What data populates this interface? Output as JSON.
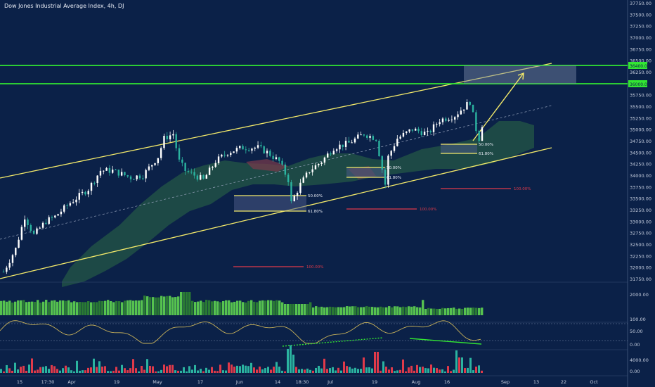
{
  "title": "Dow Jones Industrial Average Index, 4h, DJ",
  "colors": {
    "background": "#0b2148",
    "bull": "#ffffff",
    "bear": "#2bb3a0",
    "channel": "#f4ea6a",
    "resistance": "#32e632",
    "cloud_bull": "#2e6b45",
    "cloud_bear": "#7a3a4a",
    "volume_up": "#56c24f",
    "volume_down": "#2a7a34",
    "fib_line": "#f4ea6a",
    "fib_target": "#e03a4a",
    "oscillator": "#c9b25a",
    "momentum_up": "#2bb3a0",
    "momentum_down": "#e03a4a"
  },
  "chart_data": {
    "type": "candlestick",
    "title": "Dow Jones Industrial Average Index, 4h, DJ",
    "x_tick_labels": [
      "15",
      "17:30",
      "Apr",
      "19",
      "May",
      "17",
      "Jun",
      "14",
      "18:30",
      "Jul",
      "19",
      "Aug",
      "16",
      "Sep",
      "13",
      "22",
      "Oct"
    ],
    "y_tick_labels": [
      "37750.00",
      "37500.00",
      "37250.00",
      "37000.00",
      "36750.00",
      "36500.00",
      "36250.00",
      "35750.00",
      "35500.00",
      "35250.00",
      "35000.00",
      "34750.00",
      "34500.00",
      "34250.00",
      "34000.00",
      "33750.00",
      "33500.00",
      "33250.00",
      "33000.00",
      "32750.00",
      "32500.00",
      "32250.00",
      "32000.00",
      "31750.00"
    ],
    "ylim": [
      31700,
      37800
    ],
    "resistance_labels": [
      "36400.00",
      "36000.00"
    ],
    "close_path": [
      {
        "x": "Mar 15",
        "y": 31900
      },
      {
        "x": "Mar 19",
        "y": 32400
      },
      {
        "x": "Mar 22",
        "y": 33100
      },
      {
        "x": "Mar 25",
        "y": 32700
      },
      {
        "x": "Mar 29",
        "y": 33000
      },
      {
        "x": "Apr 1",
        "y": 33100
      },
      {
        "x": "Apr 6",
        "y": 33400
      },
      {
        "x": "Apr 12",
        "y": 33700
      },
      {
        "x": "Apr 16",
        "y": 34100
      },
      {
        "x": "Apr 20",
        "y": 34100
      },
      {
        "x": "Apr 26",
        "y": 33950
      },
      {
        "x": "Apr 30",
        "y": 34000
      },
      {
        "x": "May 5",
        "y": 34400
      },
      {
        "x": "May 7",
        "y": 34800
      },
      {
        "x": "May 10",
        "y": 34900
      },
      {
        "x": "May 12",
        "y": 34300
      },
      {
        "x": "May 14",
        "y": 34100
      },
      {
        "x": "May 17",
        "y": 34000
      },
      {
        "x": "May 20",
        "y": 33900
      },
      {
        "x": "May 24",
        "y": 34300
      },
      {
        "x": "May 28",
        "y": 34500
      },
      {
        "x": "Jun 2",
        "y": 34600
      },
      {
        "x": "Jun 7",
        "y": 34600
      },
      {
        "x": "Jun 10",
        "y": 34500
      },
      {
        "x": "Jun 14",
        "y": 34300
      },
      {
        "x": "Jun 17",
        "y": 33900
      },
      {
        "x": "Jun 18",
        "y": 33400
      },
      {
        "x": "Jun 21",
        "y": 33800
      },
      {
        "x": "Jun 24",
        "y": 34100
      },
      {
        "x": "Jun 28",
        "y": 34300
      },
      {
        "x": "Jul 2",
        "y": 34600
      },
      {
        "x": "Jul 7",
        "y": 34700
      },
      {
        "x": "Jul 12",
        "y": 34900
      },
      {
        "x": "Jul 16",
        "y": 34800
      },
      {
        "x": "Jul 19",
        "y": 33800
      },
      {
        "x": "Jul 20",
        "y": 34400
      },
      {
        "x": "Jul 23",
        "y": 34800
      },
      {
        "x": "Jul 28",
        "y": 35000
      },
      {
        "x": "Aug 2",
        "y": 34900
      },
      {
        "x": "Aug 6",
        "y": 35200
      },
      {
        "x": "Aug 11",
        "y": 35300
      },
      {
        "x": "Aug 16",
        "y": 35600
      },
      {
        "x": "Aug 18",
        "y": 35000
      },
      {
        "x": "Aug 19",
        "y": 34800
      },
      {
        "x": "Aug 20",
        "y": 35100
      }
    ],
    "channel": {
      "upper": [
        {
          "x": "Mar 15",
          "y": 34000
        },
        {
          "x": "Sep 22",
          "y": 36400
        }
      ],
      "lower": [
        {
          "x": "Mar 15",
          "y": 31700
        },
        {
          "x": "Sep 22",
          "y": 34600
        }
      ]
    },
    "resistance_levels": [
      36400,
      36000
    ],
    "fib_boxes": [
      {
        "levels": [
          "50.00%",
          "61.80%"
        ],
        "values": [
          33500,
          33300
        ],
        "target_label": "100.00%",
        "target": 32000
      },
      {
        "levels": [
          "50.00%",
          "61.80%"
        ],
        "values": [
          34150,
          33950
        ],
        "target_label": "100.00%",
        "target": 33200
      },
      {
        "levels": [
          "50.00%",
          "61.80%"
        ],
        "values": [
          34650,
          34450
        ],
        "target_label": "100.00%",
        "target": 33700
      }
    ],
    "projection_zone": [
      36000,
      36400
    ],
    "volume_axis_labels": [
      "2000.00"
    ],
    "oscillator_axis_labels": [
      "100.00",
      "50.00",
      "0.00"
    ],
    "momentum_axis_labels": [
      "4000.00",
      "0.00"
    ]
  }
}
